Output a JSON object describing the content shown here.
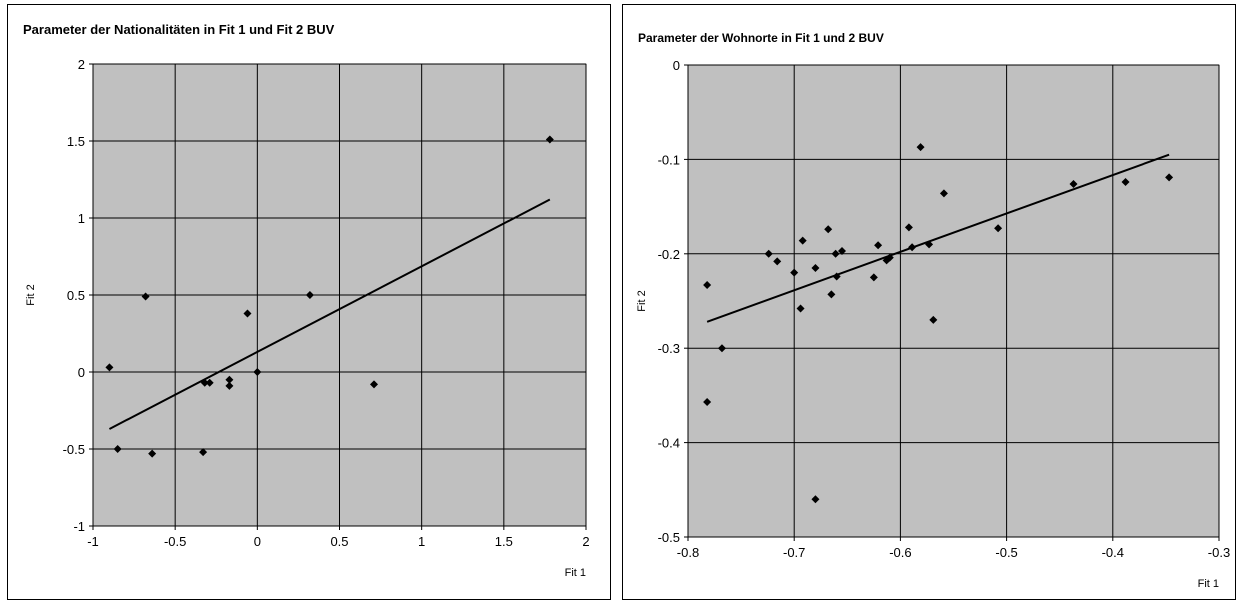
{
  "charts": [
    {
      "title": "Parameter der Nationalitäten in Fit 1 und Fit 2 BUV",
      "chart_data": {
        "type": "scatter",
        "title": "Parameter der Nationalitäten in Fit 1 und Fit 2 BUV",
        "xlabel": "Fit 1",
        "ylabel": "Fit 2",
        "xlim": [
          -1,
          2
        ],
        "ylim": [
          -1,
          2
        ],
        "xticks": [
          -1,
          -0.5,
          0,
          0.5,
          1,
          1.5,
          2
        ],
        "yticks": [
          -1,
          -0.5,
          0,
          0.5,
          1,
          1.5,
          2
        ],
        "xtick_labels": [
          "-1",
          "-0.5",
          "0",
          "0.5",
          "1",
          "1.5",
          "2"
        ],
        "ytick_labels": [
          "-1",
          "-0.5",
          "0",
          "0.5",
          "1",
          "1.5",
          "2"
        ],
        "grid": true,
        "plot_background": "#c0c0c0",
        "marker_color": "#000000",
        "points": [
          {
            "x": -0.9,
            "y": 0.03
          },
          {
            "x": -0.85,
            "y": -0.5
          },
          {
            "x": -0.68,
            "y": 0.49
          },
          {
            "x": -0.64,
            "y": -0.53
          },
          {
            "x": -0.33,
            "y": -0.52
          },
          {
            "x": -0.32,
            "y": -0.07
          },
          {
            "x": -0.29,
            "y": -0.07
          },
          {
            "x": -0.17,
            "y": -0.05
          },
          {
            "x": -0.17,
            "y": -0.09
          },
          {
            "x": -0.06,
            "y": 0.38
          },
          {
            "x": 0.0,
            "y": 0.0
          },
          {
            "x": 0.32,
            "y": 0.5
          },
          {
            "x": 0.71,
            "y": -0.08
          },
          {
            "x": 1.78,
            "y": 1.51
          }
        ],
        "trendline": {
          "x": [
            -0.9,
            1.78
          ],
          "y": [
            -0.37,
            1.12
          ]
        }
      }
    },
    {
      "title": "Parameter der Wohnorte in Fit 1 und 2 BUV",
      "chart_data": {
        "type": "scatter",
        "title": "Parameter der Wohnorte in Fit 1 und 2 BUV",
        "xlabel": "Fit 1",
        "ylabel": "Fit 2",
        "xlim": [
          -0.8,
          -0.3
        ],
        "ylim": [
          -0.5,
          0
        ],
        "xticks": [
          -0.8,
          -0.7,
          -0.6,
          -0.5,
          -0.4,
          -0.3
        ],
        "yticks": [
          -0.5,
          -0.4,
          -0.3,
          -0.2,
          -0.1,
          0
        ],
        "xtick_labels": [
          "-0.8",
          "-0.7",
          "-0.6",
          "-0.5",
          "-0.4",
          "-0.3"
        ],
        "ytick_labels": [
          "-0.5",
          "-0.4",
          "-0.3",
          "-0.2",
          "-0.1",
          "0"
        ],
        "grid": true,
        "plot_background": "#c0c0c0",
        "marker_color": "#000000",
        "points": [
          {
            "x": -0.782,
            "y": -0.233
          },
          {
            "x": -0.782,
            "y": -0.357
          },
          {
            "x": -0.768,
            "y": -0.3
          },
          {
            "x": -0.724,
            "y": -0.2
          },
          {
            "x": -0.716,
            "y": -0.208
          },
          {
            "x": -0.7,
            "y": -0.22
          },
          {
            "x": -0.694,
            "y": -0.258
          },
          {
            "x": -0.692,
            "y": -0.186
          },
          {
            "x": -0.68,
            "y": -0.215
          },
          {
            "x": -0.68,
            "y": -0.46
          },
          {
            "x": -0.668,
            "y": -0.174
          },
          {
            "x": -0.665,
            "y": -0.243
          },
          {
            "x": -0.661,
            "y": -0.2
          },
          {
            "x": -0.66,
            "y": -0.224
          },
          {
            "x": -0.655,
            "y": -0.197
          },
          {
            "x": -0.625,
            "y": -0.225
          },
          {
            "x": -0.621,
            "y": -0.191
          },
          {
            "x": -0.613,
            "y": -0.207
          },
          {
            "x": -0.61,
            "y": -0.204
          },
          {
            "x": -0.592,
            "y": -0.172
          },
          {
            "x": -0.589,
            "y": -0.193
          },
          {
            "x": -0.581,
            "y": -0.087
          },
          {
            "x": -0.573,
            "y": -0.19
          },
          {
            "x": -0.569,
            "y": -0.27
          },
          {
            "x": -0.559,
            "y": -0.136
          },
          {
            "x": -0.508,
            "y": -0.173
          },
          {
            "x": -0.437,
            "y": -0.126
          },
          {
            "x": -0.388,
            "y": -0.124
          },
          {
            "x": -0.347,
            "y": -0.119
          }
        ],
        "trendline": {
          "x": [
            -0.782,
            -0.347
          ],
          "y": [
            -0.272,
            -0.095
          ]
        }
      }
    }
  ]
}
